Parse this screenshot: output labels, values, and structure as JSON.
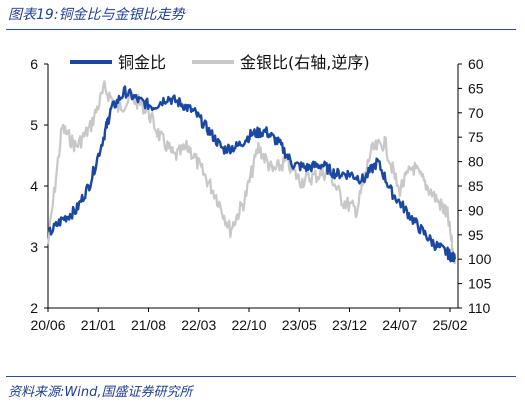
{
  "header": {
    "title": "图表19:铜金比与金银比走势"
  },
  "footer": {
    "source": "资料来源:Wind,国盛证券研究所"
  },
  "chart_data": {
    "type": "line",
    "title": "图表19:铜金比与金银比走势",
    "x_ticks": [
      "20/06",
      "21/01",
      "21/08",
      "22/03",
      "22/10",
      "23/05",
      "23/12",
      "24/07",
      "25/02"
    ],
    "y_left": {
      "ylim": [
        2,
        6
      ],
      "ticks": [
        "2",
        "3",
        "4",
        "5",
        "6"
      ]
    },
    "y_right": {
      "ylim": [
        60,
        110
      ],
      "inverted": true,
      "ticks": [
        "60",
        "65",
        "70",
        "75",
        "80",
        "85",
        "90",
        "95",
        "100",
        "105",
        "110"
      ]
    },
    "legend": {
      "position": "top"
    },
    "colors": {
      "copper_gold": "#1a47a0",
      "gold_silver": "#c8c8c8"
    },
    "series": [
      {
        "name": "铜金比",
        "axis": "left",
        "x": [
          "2020-06",
          "2020-08",
          "2020-10",
          "2020-12",
          "2021-02",
          "2021-03",
          "2021-05",
          "2021-07",
          "2021-09",
          "2021-11",
          "2022-01",
          "2022-03",
          "2022-05",
          "2022-07",
          "2022-09",
          "2022-11",
          "2023-01",
          "2023-03",
          "2023-05",
          "2023-07",
          "2023-09",
          "2023-11",
          "2024-01",
          "2024-03",
          "2024-05",
          "2024-07",
          "2024-09",
          "2024-11",
          "2025-01",
          "2025-03",
          "2025-04"
        ],
        "values": [
          3.2,
          3.45,
          3.6,
          4.05,
          4.85,
          5.25,
          5.55,
          5.4,
          5.3,
          5.45,
          5.35,
          5.2,
          4.9,
          4.6,
          4.65,
          4.85,
          4.9,
          4.7,
          4.35,
          4.3,
          4.35,
          4.2,
          4.2,
          4.1,
          4.4,
          3.9,
          3.6,
          3.3,
          3.05,
          2.9,
          2.8
        ]
      },
      {
        "name": "金银比(右轴,逆序)",
        "axis": "right",
        "x": [
          "2020-06",
          "2020-08",
          "2020-10",
          "2020-12",
          "2021-02",
          "2021-04",
          "2021-06",
          "2021-08",
          "2021-10",
          "2021-12",
          "2022-02",
          "2022-04",
          "2022-06",
          "2022-08",
          "2022-10",
          "2022-12",
          "2023-02",
          "2023-04",
          "2023-06",
          "2023-08",
          "2023-10",
          "2023-12",
          "2024-02",
          "2024-04",
          "2024-06",
          "2024-08",
          "2024-10",
          "2024-12",
          "2025-02",
          "2025-03",
          "2025-04"
        ],
        "values": [
          97,
          73,
          77,
          73,
          65,
          69,
          67,
          69,
          75,
          79,
          77,
          82,
          87,
          94,
          88,
          77,
          82,
          80,
          84,
          83,
          82,
          88,
          90,
          78,
          76,
          86,
          81,
          85,
          89,
          91,
          101
        ]
      }
    ]
  }
}
